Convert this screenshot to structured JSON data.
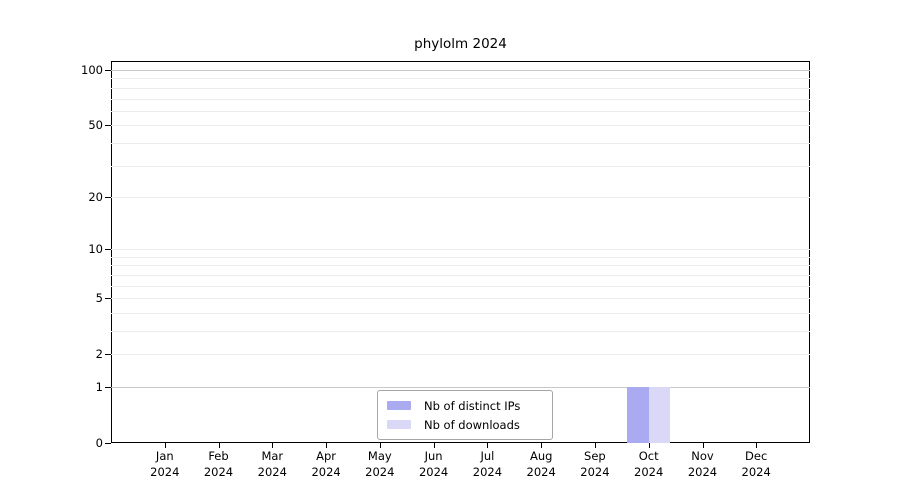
{
  "chart_data": {
    "type": "bar",
    "title": "phylolm 2024",
    "x": {
      "months": [
        "Jan",
        "Feb",
        "Mar",
        "Apr",
        "May",
        "Jun",
        "Jul",
        "Aug",
        "Sep",
        "Oct",
        "Nov",
        "Dec"
      ],
      "year_label": "2024"
    },
    "y": {
      "scale": "log1p",
      "tick_values": [
        0,
        1,
        2,
        5,
        10,
        20,
        50,
        100
      ],
      "gridline_values": [
        1,
        2,
        3,
        4,
        5,
        6,
        7,
        8,
        9,
        10,
        20,
        30,
        40,
        50,
        60,
        70,
        80,
        90,
        100
      ],
      "emphasized_gridlines": [
        1,
        100
      ],
      "ylim": [
        0,
        112
      ]
    },
    "series": [
      {
        "name": "Nb of distinct IPs",
        "color": "#aaaaf0",
        "values": [
          0,
          0,
          0,
          0,
          0,
          0,
          0,
          0,
          0,
          1,
          0,
          0
        ]
      },
      {
        "name": "Nb of downloads",
        "color": "#d9d9f7",
        "values": [
          0,
          0,
          0,
          0,
          0,
          0,
          0,
          0,
          0,
          1,
          0,
          0
        ]
      }
    ],
    "legend": {
      "position": "lower-center-inside",
      "border_color": "#a6a6a6",
      "background": "#ffffff"
    },
    "colors": {
      "grid_minor": "#ededed",
      "grid_emphasis": "#c8c8c8",
      "axis": "#000000",
      "text": "#000000",
      "background": "#ffffff"
    }
  }
}
